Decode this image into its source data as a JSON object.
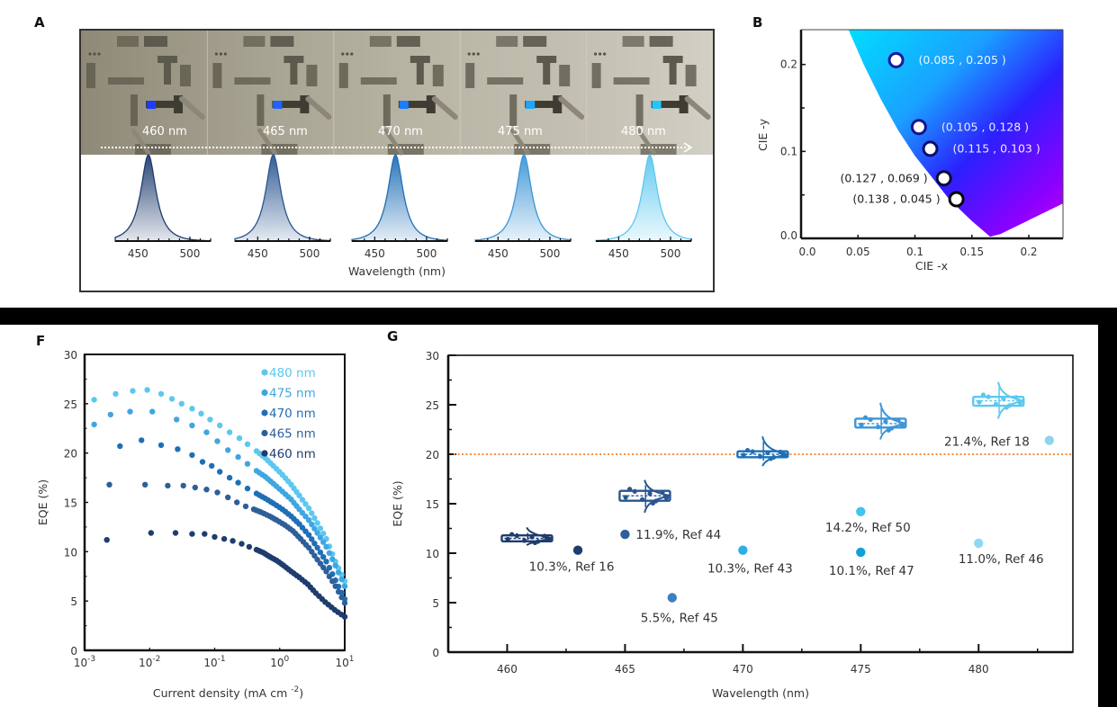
{
  "panels": {
    "A": {
      "label": "A",
      "devices": [
        {
          "wavelength_label": "460 nm",
          "peak_nm": 460,
          "color": "#1f3c6e",
          "pixel_color": "#1a3cff"
        },
        {
          "wavelength_label": "465 nm",
          "peak_nm": 465,
          "color": "#2a5590",
          "pixel_color": "#1f63ff"
        },
        {
          "wavelength_label": "470 nm",
          "peak_nm": 470,
          "color": "#1f6fb5",
          "pixel_color": "#1e7cff"
        },
        {
          "wavelength_label": "475 nm",
          "peak_nm": 475,
          "color": "#3d95d6",
          "pixel_color": "#1ea6ff"
        },
        {
          "wavelength_label": "480 nm",
          "peak_nm": 480,
          "color": "#5cc8ef",
          "pixel_color": "#22c6ff"
        }
      ],
      "spectrum_ticks": [
        "450",
        "500"
      ],
      "xlabel": "Wavelength (nm)"
    },
    "B": {
      "label": "B"
    },
    "F": {
      "label": "F"
    },
    "G": {
      "label": "G"
    }
  },
  "chart_data": [
    {
      "id": "B",
      "type": "scatter",
      "title": "",
      "xlabel": "CIE -x",
      "ylabel": "CIE -y",
      "xlim": [
        0.0,
        0.23
      ],
      "ylim": [
        0.0,
        0.24
      ],
      "xticks": [
        "0.0",
        "0.05",
        "0.1",
        "0.15",
        "0.2"
      ],
      "xtick_values": [
        0.0,
        0.05,
        0.1,
        0.15,
        0.2
      ],
      "yticks": [
        "0.0",
        "0.1",
        "0.2"
      ],
      "ytick_values": [
        0.0,
        0.1,
        0.2
      ],
      "points": [
        {
          "x": 0.085,
          "y": 0.205,
          "label": "(0.085 , 0.205 )",
          "edge": "#1a1aa0",
          "label_color": "#e8f6ff"
        },
        {
          "x": 0.105,
          "y": 0.128,
          "label": "(0.105 , 0.128 )",
          "edge": "#14148a",
          "label_color": "#e8ecff"
        },
        {
          "x": 0.115,
          "y": 0.103,
          "label": "(0.115 , 0.103 )",
          "edge": "#0e0e6a",
          "label_color": "#efe8ff"
        },
        {
          "x": 0.127,
          "y": 0.069,
          "label": "(0.127 , 0.069 )",
          "edge": "#0a0a3a",
          "label_color": "#222222"
        },
        {
          "x": 0.138,
          "y": 0.045,
          "label": "(0.138 , 0.045 )",
          "edge": "#050505",
          "label_color": "#222222"
        }
      ],
      "background": "CIE chromaticity gradient (cyan to blue to violet)"
    },
    {
      "id": "F",
      "type": "scatter",
      "xscale": "log",
      "xlabel": "Current density  (mA cm",
      "xlabel_sup": "-2",
      "xlabel_end": ")",
      "ylabel": "EQE  (%)",
      "xlim": [
        0.001,
        10
      ],
      "ylim": [
        0,
        30
      ],
      "xticks": [
        {
          "base": "10",
          "exp": "-3"
        },
        {
          "base": "10",
          "exp": "-2"
        },
        {
          "base": "10",
          "exp": "-1"
        },
        {
          "base": "10",
          "exp": "0"
        },
        {
          "base": "10",
          "exp": "1"
        }
      ],
      "yticks": [
        "0",
        "5",
        "10",
        "15",
        "20",
        "25",
        "30"
      ],
      "legend_position": "top-right",
      "series": [
        {
          "name": "480 nm",
          "color": "#5cc8ef",
          "points": [
            [
              0.0014,
              25.4
            ],
            [
              0.003,
              26.0
            ],
            [
              0.0055,
              26.3
            ],
            [
              0.0092,
              26.4
            ],
            [
              0.015,
              26.0
            ],
            [
              0.022,
              25.5
            ],
            [
              0.031,
              25.0
            ],
            [
              0.045,
              24.5
            ],
            [
              0.062,
              24.0
            ],
            [
              0.085,
              23.4
            ],
            [
              0.12,
              22.8
            ],
            [
              0.17,
              22.1
            ],
            [
              0.24,
              21.5
            ],
            [
              0.32,
              20.9
            ],
            [
              0.44,
              20.2
            ],
            [
              0.6,
              19.5
            ],
            [
              0.8,
              18.7
            ],
            [
              1.1,
              17.8
            ],
            [
              1.5,
              16.8
            ],
            [
              2.0,
              15.7
            ],
            [
              2.8,
              14.4
            ],
            [
              3.8,
              12.9
            ],
            [
              5.2,
              11.3
            ],
            [
              7.2,
              9.0
            ],
            [
              10,
              7.0
            ]
          ]
        },
        {
          "name": "475 nm",
          "color": "#3fa6e0",
          "points": [
            [
              0.0014,
              22.9
            ],
            [
              0.0025,
              23.9
            ],
            [
              0.005,
              24.2
            ],
            [
              0.011,
              24.2
            ],
            [
              0.026,
              23.4
            ],
            [
              0.045,
              22.8
            ],
            [
              0.075,
              22.1
            ],
            [
              0.11,
              21.2
            ],
            [
              0.16,
              20.3
            ],
            [
              0.23,
              19.6
            ],
            [
              0.32,
              18.9
            ],
            [
              0.44,
              18.2
            ],
            [
              0.6,
              17.6
            ],
            [
              0.8,
              16.9
            ],
            [
              1.1,
              16.1
            ],
            [
              1.5,
              15.3
            ],
            [
              2.0,
              14.3
            ],
            [
              2.8,
              13.2
            ],
            [
              3.8,
              11.9
            ],
            [
              5.2,
              10.5
            ],
            [
              7.2,
              8.6
            ],
            [
              10,
              6.5
            ]
          ]
        },
        {
          "name": "470 nm",
          "color": "#1f6fb5",
          "points": [
            [
              0.0035,
              20.7
            ],
            [
              0.0075,
              21.3
            ],
            [
              0.015,
              20.8
            ],
            [
              0.027,
              20.4
            ],
            [
              0.045,
              19.8
            ],
            [
              0.065,
              19.1
            ],
            [
              0.09,
              18.7
            ],
            [
              0.12,
              18.1
            ],
            [
              0.17,
              17.5
            ],
            [
              0.23,
              17.0
            ],
            [
              0.32,
              16.4
            ],
            [
              0.44,
              15.9
            ],
            [
              0.6,
              15.4
            ],
            [
              0.8,
              14.9
            ],
            [
              1.1,
              14.3
            ],
            [
              1.5,
              13.6
            ],
            [
              2.0,
              12.8
            ],
            [
              2.8,
              11.7
            ],
            [
              3.8,
              10.4
            ],
            [
              5.2,
              9.0
            ],
            [
              7.2,
              7.1
            ],
            [
              10,
              5.2
            ]
          ]
        },
        {
          "name": "465 nm",
          "color": "#2f5f99",
          "points": [
            [
              0.0024,
              16.8
            ],
            [
              0.0085,
              16.8
            ],
            [
              0.019,
              16.7
            ],
            [
              0.033,
              16.7
            ],
            [
              0.05,
              16.5
            ],
            [
              0.075,
              16.3
            ],
            [
              0.11,
              16.0
            ],
            [
              0.16,
              15.5
            ],
            [
              0.22,
              15.0
            ],
            [
              0.3,
              14.6
            ],
            [
              0.4,
              14.3
            ],
            [
              0.52,
              14.0
            ],
            [
              0.7,
              13.6
            ],
            [
              0.9,
              13.2
            ],
            [
              1.2,
              12.7
            ],
            [
              1.6,
              12.1
            ],
            [
              2.1,
              11.3
            ],
            [
              2.8,
              10.4
            ],
            [
              3.8,
              9.2
            ],
            [
              5.2,
              8.0
            ],
            [
              7.2,
              6.5
            ],
            [
              10,
              4.8
            ]
          ]
        },
        {
          "name": "460 nm",
          "color": "#1f3c6e",
          "points": [
            [
              0.0022,
              11.2
            ],
            [
              0.0105,
              11.9
            ],
            [
              0.025,
              11.9
            ],
            [
              0.045,
              11.8
            ],
            [
              0.07,
              11.8
            ],
            [
              0.1,
              11.5
            ],
            [
              0.14,
              11.3
            ],
            [
              0.19,
              11.1
            ],
            [
              0.26,
              10.8
            ],
            [
              0.34,
              10.5
            ],
            [
              0.44,
              10.2
            ],
            [
              0.56,
              9.9
            ],
            [
              0.7,
              9.5
            ],
            [
              0.9,
              9.1
            ],
            [
              1.15,
              8.6
            ],
            [
              1.5,
              8.0
            ],
            [
              2.0,
              7.4
            ],
            [
              2.7,
              6.7
            ],
            [
              3.6,
              5.8
            ],
            [
              5.0,
              4.9
            ],
            [
              7.0,
              4.1
            ],
            [
              10,
              3.4
            ]
          ]
        }
      ]
    },
    {
      "id": "G",
      "type": "scatter",
      "xlabel": "Wavelength (nm)",
      "ylabel": "EQE (%)",
      "xlim": [
        457.5,
        484
      ],
      "ylim": [
        0,
        30
      ],
      "xticks": [
        "460",
        "465",
        "470",
        "475",
        "480"
      ],
      "xtick_values": [
        460,
        465,
        470,
        475,
        480
      ],
      "yticks": [
        "0",
        "5",
        "10",
        "15",
        "20",
        "25",
        "30"
      ],
      "reference_line": {
        "y": 20,
        "color": "#f5904a",
        "style": "dotted"
      },
      "this_work": [
        {
          "wavelength": 460,
          "median": 11.5,
          "min": 10.8,
          "max": 12.6,
          "q1": 11.2,
          "q3": 11.8,
          "color": "#1f3c6e"
        },
        {
          "wavelength": 465,
          "median": 15.8,
          "min": 14.1,
          "max": 17.4,
          "q1": 15.3,
          "q3": 16.3,
          "color": "#2a5590"
        },
        {
          "wavelength": 470,
          "median": 20.0,
          "min": 18.8,
          "max": 21.8,
          "q1": 19.7,
          "q3": 20.3,
          "color": "#1f6fb5"
        },
        {
          "wavelength": 475,
          "median": 23.1,
          "min": 21.5,
          "max": 25.2,
          "q1": 22.7,
          "q3": 23.6,
          "color": "#3d95d6"
        },
        {
          "wavelength": 480,
          "median": 25.4,
          "min": 23.6,
          "max": 27.3,
          "q1": 24.9,
          "q3": 25.8,
          "color": "#5cc8ef"
        }
      ],
      "references": [
        {
          "wavelength": 463,
          "eqe": 10.3,
          "label": "10.3%,   Ref 16",
          "color": "#1f3c6e",
          "label_pos": "below"
        },
        {
          "wavelength": 465,
          "eqe": 11.9,
          "label": "11.9%, Ref 44",
          "color": "#2f5f99",
          "label_pos": "right"
        },
        {
          "wavelength": 467,
          "eqe": 5.5,
          "label": "5.5%,   Ref 45",
          "color": "#3d7fc0",
          "label_pos": "below"
        },
        {
          "wavelength": 470,
          "eqe": 10.3,
          "label": "10.3%,   Ref 43",
          "color": "#29b0e6",
          "label_pos": "below"
        },
        {
          "wavelength": 475,
          "eqe": 14.2,
          "label": "14.2%,   Ref 50",
          "color": "#40c4f0",
          "label_pos": "below"
        },
        {
          "wavelength": 475,
          "eqe": 10.1,
          "label": "10.1%,   Ref 47",
          "color": "#13a0da",
          "label_pos": "below"
        },
        {
          "wavelength": 480,
          "eqe": 11.0,
          "label": "11.0%, Ref 46",
          "color": "#8fd8f5",
          "label_pos": "below"
        },
        {
          "wavelength": 483,
          "eqe": 21.4,
          "label": "21.4%, Ref 18",
          "color": "#8fd3f0",
          "label_pos": "left"
        }
      ]
    }
  ]
}
